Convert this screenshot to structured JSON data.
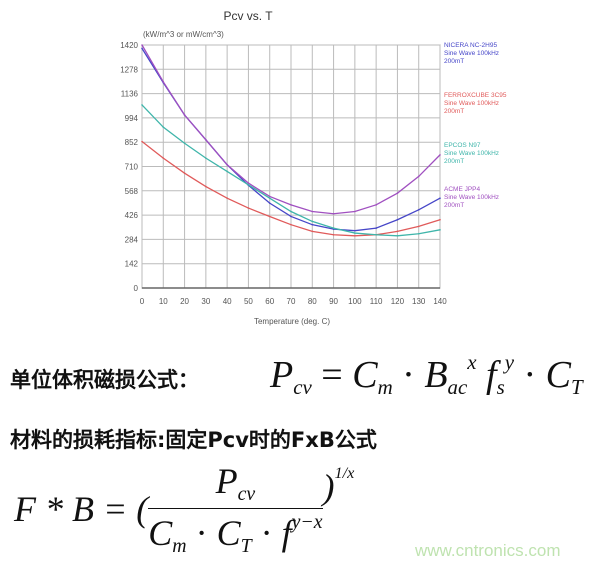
{
  "chart_data": {
    "type": "line",
    "title": "Pcv vs. T",
    "ylabel": "(kW/m^3 or mW/cm^3)",
    "xlabel": "Temperature (deg. C)",
    "xlim": [
      0,
      140
    ],
    "ylim": [
      0,
      1420
    ],
    "xticks": [
      0,
      10,
      20,
      30,
      40,
      50,
      60,
      70,
      80,
      90,
      100,
      110,
      120,
      130,
      140
    ],
    "yticks": [
      0,
      142,
      284,
      426,
      568,
      710,
      852,
      994,
      1136,
      1278,
      1420
    ],
    "grid": true,
    "legend": "right",
    "x": [
      0,
      10,
      20,
      30,
      40,
      50,
      60,
      70,
      80,
      90,
      100,
      110,
      120,
      130,
      140
    ],
    "series": [
      {
        "name": "NICERA NC-2H95",
        "lines": [
          "NICERA NC-2H95",
          "Sine Wave 100kHz",
          "200mT"
        ],
        "color": "#4646c8",
        "values": [
          1400,
          1200,
          1011,
          866,
          720,
          600,
          496,
          418,
          370,
          344,
          335,
          350,
          399,
          457,
          525
        ]
      },
      {
        "name": "FERROXCUBE 3C95",
        "lines": [
          "FERROXCUBE 3C95",
          "Sine Wave 100kHz",
          "200mT"
        ],
        "color": "#e05a5a",
        "values": [
          856,
          759,
          671,
          593,
          525,
          467,
          418,
          370,
          331,
          311,
          305,
          311,
          331,
          360,
          399
        ]
      },
      {
        "name": "EPCOS N97",
        "lines": [
          "EPCOS N97",
          "Sine Wave 100kHz",
          "200mT"
        ],
        "color": "#3fb5aa",
        "values": [
          1070,
          940,
          846,
          759,
          681,
          603,
          525,
          447,
          389,
          350,
          321,
          311,
          305,
          317,
          340
        ]
      },
      {
        "name": "ACME JPP4",
        "lines": [
          "ACME JPP4",
          "Sine Wave 100kHz",
          "200mT"
        ],
        "color": "#a050c0",
        "values": [
          1420,
          1205,
          1011,
          866,
          720,
          613,
          535,
          486,
          447,
          434,
          447,
          486,
          554,
          652,
          778
        ]
      }
    ]
  },
  "text": {
    "line1_label": "单位体积磁损公式：",
    "line2_label": "材料的损耗指标:固定Pcv时的FxB公式",
    "formula1": {
      "P": "P",
      "cv": "cv",
      "eq": "=",
      "C": "C",
      "m": "m",
      "dot1": "·",
      "B": "B",
      "ac": "ac",
      "x": "x",
      "f": "f",
      "s": "s",
      "y": "y",
      "dot2": "·",
      "C2": "C",
      "T": "T"
    },
    "formula2": {
      "lhs": "F * B = (",
      "P": "P",
      "cv": "cv",
      "C": "C",
      "m": "m",
      "dot1": " · ",
      "C2": "C",
      "T": "T",
      "dot2": " · ",
      "f": "f",
      "exp": "y−x",
      "rp": ")",
      "pow": "1/x"
    },
    "watermark": "www.cntronics.com"
  }
}
